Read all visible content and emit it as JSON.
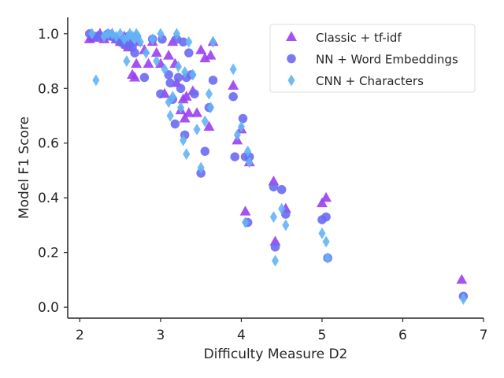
{
  "chart_data": {
    "type": "scatter",
    "title": "",
    "xlabel": "Difficulty Measure D2",
    "ylabel": "Model F1 Score",
    "xlim": [
      1.85,
      7.0
    ],
    "ylim": [
      -0.04,
      1.06
    ],
    "xticks": [
      2,
      3,
      4,
      5,
      6,
      7
    ],
    "yticks": [
      0.0,
      0.2,
      0.4,
      0.6,
      0.8,
      1.0
    ],
    "ytick_labels": [
      "0.0",
      "0.2",
      "0.4",
      "0.6",
      "0.8",
      "1.0"
    ],
    "grid": false,
    "legend": {
      "placement": "top-right"
    },
    "series": [
      {
        "name": "Classic + tf-idf",
        "marker": "triangle",
        "color": "#9b3ff0",
        "points": [
          [
            2.12,
            0.98
          ],
          [
            2.15,
            0.99
          ],
          [
            2.18,
            0.985
          ],
          [
            2.22,
            0.99
          ],
          [
            2.25,
            1.0
          ],
          [
            2.3,
            0.98
          ],
          [
            2.35,
            0.99
          ],
          [
            2.4,
            1.0
          ],
          [
            2.45,
            0.98
          ],
          [
            2.5,
            0.97
          ],
          [
            2.55,
            0.99
          ],
          [
            2.58,
            0.96
          ],
          [
            2.6,
            0.95
          ],
          [
            2.62,
            0.97
          ],
          [
            2.65,
            0.85
          ],
          [
            2.68,
            0.84
          ],
          [
            2.7,
            0.89
          ],
          [
            2.72,
            0.97
          ],
          [
            2.8,
            0.94
          ],
          [
            2.85,
            0.89
          ],
          [
            2.9,
            0.97
          ],
          [
            2.95,
            0.93
          ],
          [
            3.0,
            0.89
          ],
          [
            3.05,
            0.78
          ],
          [
            3.1,
            0.92
          ],
          [
            3.15,
            0.97
          ],
          [
            3.18,
            0.89
          ],
          [
            3.2,
            0.82
          ],
          [
            3.25,
            0.72
          ],
          [
            3.28,
            0.76
          ],
          [
            3.3,
            0.69
          ],
          [
            3.32,
            0.77
          ],
          [
            3.35,
            0.71
          ],
          [
            3.4,
            0.79
          ],
          [
            3.45,
            0.71
          ],
          [
            3.5,
            0.94
          ],
          [
            3.55,
            0.91
          ],
          [
            3.6,
            0.66
          ],
          [
            3.62,
            0.92
          ],
          [
            3.65,
            0.97
          ],
          [
            3.9,
            0.81
          ],
          [
            3.95,
            0.61
          ],
          [
            4.0,
            0.65
          ],
          [
            4.05,
            0.35
          ],
          [
            4.1,
            0.53
          ],
          [
            4.4,
            0.46
          ],
          [
            4.42,
            0.24
          ],
          [
            4.55,
            0.36
          ],
          [
            5.0,
            0.38
          ],
          [
            5.05,
            0.4
          ],
          [
            6.73,
            0.1
          ]
        ]
      },
      {
        "name": "NN + Word Embeddings",
        "marker": "circle",
        "color": "#6a6cf2",
        "points": [
          [
            2.12,
            1.0
          ],
          [
            2.2,
            0.99
          ],
          [
            2.25,
            0.99
          ],
          [
            2.35,
            1.0
          ],
          [
            2.4,
            0.99
          ],
          [
            2.45,
            0.98
          ],
          [
            2.5,
            0.97
          ],
          [
            2.55,
            0.96
          ],
          [
            2.6,
            0.99
          ],
          [
            2.62,
            0.96
          ],
          [
            2.65,
            0.95
          ],
          [
            2.68,
            0.93
          ],
          [
            2.7,
            0.99
          ],
          [
            2.8,
            0.84
          ],
          [
            2.9,
            0.98
          ],
          [
            3.0,
            0.78
          ],
          [
            3.02,
            0.98
          ],
          [
            3.1,
            0.85
          ],
          [
            3.12,
            0.82
          ],
          [
            3.15,
            0.76
          ],
          [
            3.18,
            0.67
          ],
          [
            3.2,
            0.98
          ],
          [
            3.22,
            0.84
          ],
          [
            3.25,
            0.8
          ],
          [
            3.28,
            0.97
          ],
          [
            3.3,
            0.63
          ],
          [
            3.32,
            0.84
          ],
          [
            3.35,
            0.93
          ],
          [
            3.38,
            0.85
          ],
          [
            3.42,
            0.78
          ],
          [
            3.5,
            0.49
          ],
          [
            3.55,
            0.57
          ],
          [
            3.6,
            0.73
          ],
          [
            3.65,
            0.83
          ],
          [
            3.9,
            0.77
          ],
          [
            3.92,
            0.55
          ],
          [
            4.02,
            0.69
          ],
          [
            4.05,
            0.55
          ],
          [
            4.08,
            0.31
          ],
          [
            4.1,
            0.55
          ],
          [
            4.4,
            0.44
          ],
          [
            4.42,
            0.22
          ],
          [
            4.5,
            0.43
          ],
          [
            4.55,
            0.34
          ],
          [
            5.0,
            0.32
          ],
          [
            5.05,
            0.33
          ],
          [
            5.07,
            0.18
          ],
          [
            6.75,
            0.04
          ]
        ]
      },
      {
        "name": "CNN + Characters",
        "marker": "diamond",
        "color": "#63b4f5",
        "points": [
          [
            2.15,
            1.0
          ],
          [
            2.2,
            0.83
          ],
          [
            2.3,
            0.99
          ],
          [
            2.35,
            1.0
          ],
          [
            2.4,
            1.0
          ],
          [
            2.45,
            0.99
          ],
          [
            2.5,
            1.0
          ],
          [
            2.55,
            0.98
          ],
          [
            2.58,
            0.9
          ],
          [
            2.6,
            0.99
          ],
          [
            2.62,
            1.0
          ],
          [
            2.65,
            0.99
          ],
          [
            2.68,
            0.98
          ],
          [
            2.7,
            1.0
          ],
          [
            2.72,
            0.99
          ],
          [
            2.75,
            0.97
          ],
          [
            2.82,
            0.93
          ],
          [
            2.9,
            0.98
          ],
          [
            2.95,
            0.9
          ],
          [
            3.0,
            1.0
          ],
          [
            3.05,
            0.87
          ],
          [
            3.1,
            0.75
          ],
          [
            3.12,
            0.7
          ],
          [
            3.15,
            0.77
          ],
          [
            3.2,
            1.0
          ],
          [
            3.22,
            0.88
          ],
          [
            3.25,
            0.73
          ],
          [
            3.28,
            0.61
          ],
          [
            3.3,
            0.86
          ],
          [
            3.32,
            0.56
          ],
          [
            3.35,
            0.97
          ],
          [
            3.4,
            0.85
          ],
          [
            3.45,
            0.65
          ],
          [
            3.5,
            0.51
          ],
          [
            3.55,
            0.68
          ],
          [
            3.6,
            0.78
          ],
          [
            3.62,
            0.73
          ],
          [
            3.65,
            0.97
          ],
          [
            3.9,
            0.87
          ],
          [
            3.95,
            0.63
          ],
          [
            4.0,
            0.66
          ],
          [
            4.05,
            0.31
          ],
          [
            4.08,
            0.57
          ],
          [
            4.1,
            0.53
          ],
          [
            4.4,
            0.33
          ],
          [
            4.42,
            0.17
          ],
          [
            4.5,
            0.36
          ],
          [
            4.55,
            0.3
          ],
          [
            5.0,
            0.27
          ],
          [
            5.05,
            0.24
          ],
          [
            5.07,
            0.18
          ],
          [
            6.75,
            0.03
          ]
        ]
      }
    ]
  }
}
